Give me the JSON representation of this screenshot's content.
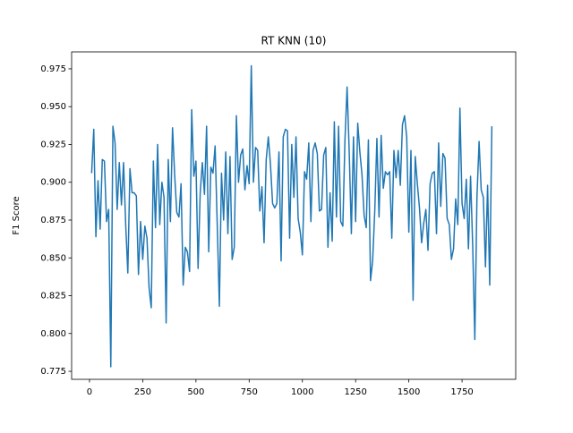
{
  "chart_data": {
    "type": "line",
    "title": "RT KNN (10)",
    "y_label": "F1 Score",
    "color": "#1f77b4",
    "x": [
      10,
      20,
      30,
      40,
      50,
      60,
      70,
      80,
      90,
      100,
      110,
      120,
      130,
      140,
      150,
      160,
      170,
      180,
      190,
      200,
      210,
      220,
      230,
      240,
      250,
      260,
      270,
      280,
      290,
      300,
      310,
      320,
      330,
      340,
      350,
      360,
      370,
      380,
      390,
      400,
      410,
      420,
      430,
      440,
      450,
      460,
      470,
      480,
      490,
      500,
      510,
      520,
      530,
      540,
      550,
      560,
      570,
      580,
      590,
      600,
      610,
      620,
      630,
      640,
      650,
      660,
      670,
      680,
      690,
      700,
      710,
      720,
      730,
      740,
      750,
      760,
      770,
      780,
      790,
      800,
      810,
      820,
      830,
      840,
      850,
      860,
      870,
      880,
      890,
      900,
      910,
      920,
      930,
      940,
      950,
      960,
      970,
      980,
      990,
      1000,
      1010,
      1020,
      1030,
      1040,
      1050,
      1060,
      1070,
      1080,
      1090,
      1100,
      1110,
      1120,
      1130,
      1140,
      1150,
      1160,
      1170,
      1180,
      1190,
      1200,
      1210,
      1220,
      1230,
      1240,
      1250,
      1260,
      1270,
      1280,
      1290,
      1300,
      1310,
      1320,
      1330,
      1340,
      1350,
      1360,
      1370,
      1380,
      1390,
      1400,
      1410,
      1420,
      1430,
      1440,
      1450,
      1460,
      1470,
      1480,
      1490,
      1500,
      1510,
      1520,
      1530,
      1540,
      1550,
      1560,
      1570,
      1580,
      1590,
      1600,
      1610,
      1620,
      1630,
      1640,
      1650,
      1660,
      1670,
      1680,
      1690,
      1700,
      1710,
      1720,
      1730,
      1740,
      1750,
      1760,
      1770,
      1780,
      1790,
      1800,
      1810,
      1820,
      1830,
      1840,
      1850,
      1860,
      1870,
      1880,
      1890
    ],
    "values": [
      0.906,
      0.935,
      0.864,
      0.901,
      0.869,
      0.915,
      0.914,
      0.874,
      0.882,
      0.778,
      0.937,
      0.926,
      0.882,
      0.913,
      0.885,
      0.913,
      0.872,
      0.84,
      0.909,
      0.893,
      0.893,
      0.891,
      0.839,
      0.874,
      0.849,
      0.871,
      0.863,
      0.83,
      0.817,
      0.914,
      0.87,
      0.925,
      0.872,
      0.9,
      0.89,
      0.807,
      0.915,
      0.874,
      0.936,
      0.905,
      0.88,
      0.877,
      0.899,
      0.832,
      0.857,
      0.854,
      0.841,
      0.948,
      0.904,
      0.914,
      0.843,
      0.893,
      0.913,
      0.892,
      0.937,
      0.854,
      0.91,
      0.906,
      0.924,
      0.872,
      0.818,
      0.906,
      0.875,
      0.92,
      0.866,
      0.917,
      0.849,
      0.857,
      0.944,
      0.9,
      0.918,
      0.922,
      0.895,
      0.911,
      0.899,
      0.977,
      0.9,
      0.923,
      0.921,
      0.881,
      0.897,
      0.86,
      0.915,
      0.93,
      0.912,
      0.886,
      0.883,
      0.886,
      0.92,
      0.848,
      0.93,
      0.935,
      0.934,
      0.863,
      0.925,
      0.89,
      0.93,
      0.876,
      0.867,
      0.852,
      0.907,
      0.902,
      0.926,
      0.874,
      0.921,
      0.926,
      0.919,
      0.881,
      0.882,
      0.918,
      0.923,
      0.857,
      0.893,
      0.861,
      0.94,
      0.877,
      0.937,
      0.874,
      0.871,
      0.928,
      0.963,
      0.92,
      0.866,
      0.93,
      0.874,
      0.939,
      0.92,
      0.905,
      0.878,
      0.87,
      0.928,
      0.835,
      0.848,
      0.881,
      0.929,
      0.877,
      0.931,
      0.896,
      0.907,
      0.905,
      0.907,
      0.863,
      0.921,
      0.903,
      0.921,
      0.898,
      0.938,
      0.944,
      0.93,
      0.867,
      0.921,
      0.822,
      0.917,
      0.899,
      0.883,
      0.86,
      0.873,
      0.882,
      0.855,
      0.899,
      0.906,
      0.907,
      0.866,
      0.926,
      0.884,
      0.919,
      0.916,
      0.876,
      0.872,
      0.849,
      0.856,
      0.889,
      0.872,
      0.949,
      0.886,
      0.876,
      0.902,
      0.856,
      0.904,
      0.858,
      0.796,
      0.89,
      0.927,
      0.895,
      0.89,
      0.844,
      0.898,
      0.832,
      0.937
    ],
    "xlim": [
      -84,
      2002
    ],
    "xticks": [
      0,
      250,
      500,
      750,
      1000,
      1250,
      1500,
      1750
    ],
    "ylim": [
      0.7697,
      0.9862
    ],
    "yticks": [
      0.775,
      {
        "value": 0.8,
        "label": "0.800"
      },
      0.825,
      {
        "value": 0.85,
        "label": "0.850"
      },
      0.875,
      {
        "value": 0.9,
        "label": "0.900"
      },
      0.925,
      {
        "value": 0.95,
        "label": "0.950"
      },
      0.975
    ]
  }
}
